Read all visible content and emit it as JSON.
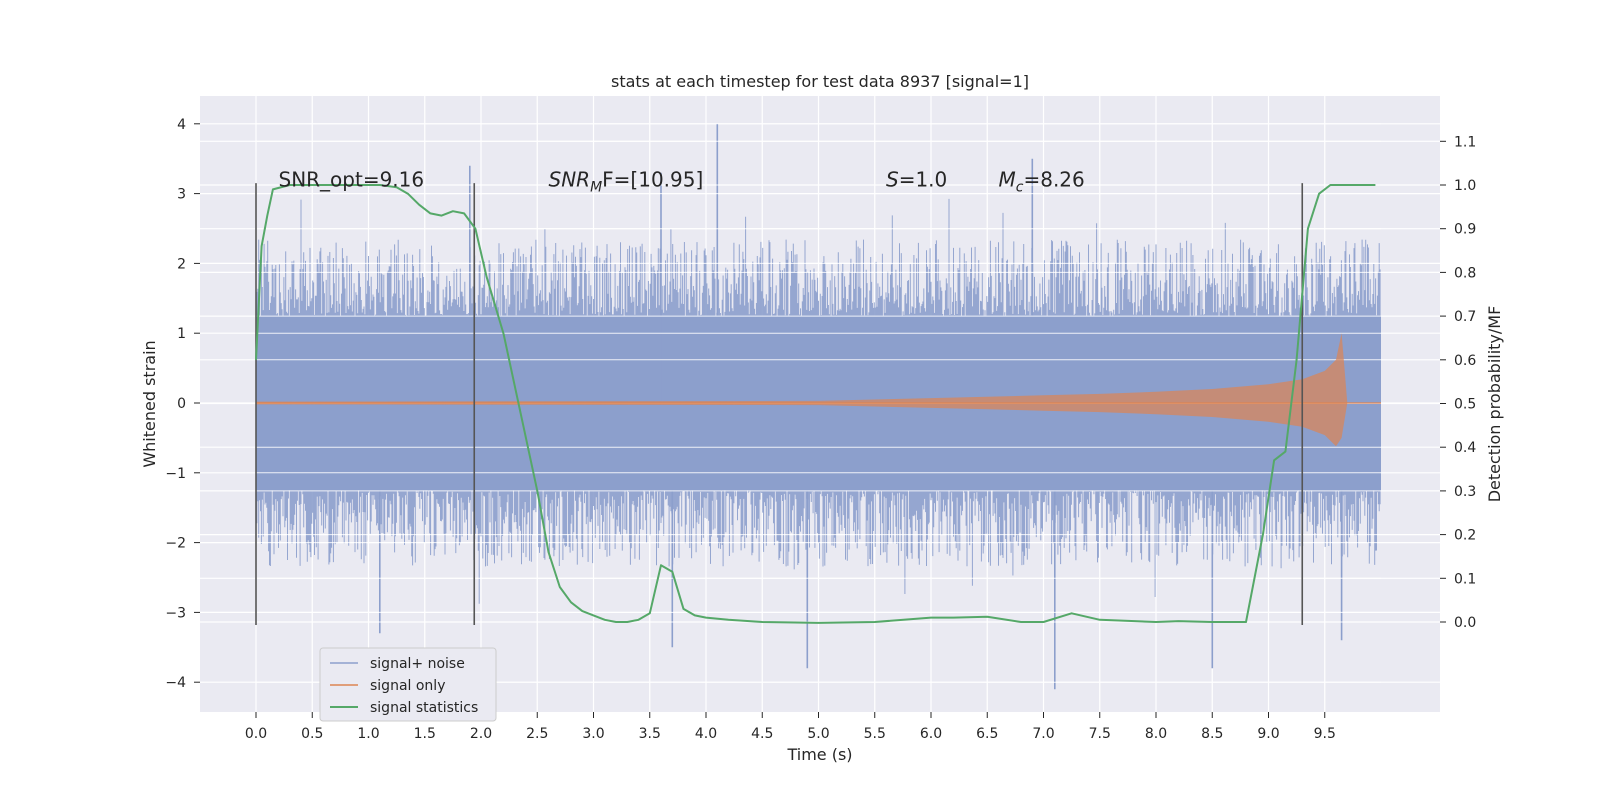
{
  "chart_data": {
    "type": "line",
    "title": "stats at each timestep for test data 8937 [signal=1]",
    "xlabel": "Time (s)",
    "ylabel": "Whitened strain",
    "y2label": "Detection probability/MF",
    "xlim": [
      -0.5,
      10.5
    ],
    "ylim": [
      -4.4,
      4.4
    ],
    "y2lim": [
      -0.2,
      1.2
    ],
    "xticks": [
      0.0,
      0.5,
      1.0,
      1.5,
      2.0,
      2.5,
      3.0,
      3.5,
      4.0,
      4.5,
      5.0,
      5.5,
      6.0,
      6.5,
      7.0,
      7.5,
      8.0,
      8.5,
      9.0,
      9.5
    ],
    "xtick_labels": [
      "0.0",
      "0.5",
      "1.0",
      "1.5",
      "2.0",
      "2.5",
      "3.0",
      "3.5",
      "4.0",
      "4.5",
      "5.0",
      "5.5",
      "6.0",
      "6.5",
      "7.0",
      "7.5",
      "8.0",
      "8.5",
      "9.0",
      "9.5"
    ],
    "yticks": [
      4,
      3,
      2,
      1,
      0,
      -1,
      -2,
      -3,
      -4
    ],
    "ytick_labels": [
      "4",
      "3",
      "2",
      "1",
      "0",
      "−1",
      "−2",
      "−3",
      "−4"
    ],
    "y2ticks": [
      1.1,
      1.0,
      0.9,
      0.8,
      0.7,
      0.6,
      0.5,
      0.4,
      0.3,
      0.2,
      0.1,
      0.0
    ],
    "y2tick_labels": [
      "1.1",
      "1.0",
      "0.9",
      "0.8",
      "0.7",
      "0.6",
      "0.5",
      "0.4",
      "0.3",
      "0.2",
      "0.1",
      "0.0"
    ],
    "grid": true,
    "legend_position": "lower-left",
    "series": [
      {
        "name": "signal+ noise",
        "color": "#8c9fcc",
        "axis": "left",
        "x_range": [
          0.0,
          10.0
        ],
        "band": {
          "inner": 1.25,
          "outer_typical": 2.2,
          "spike_max": 4.0,
          "spike_min": -4.1
        },
        "peaks": [
          {
            "x": 4.1,
            "y": 4.0
          },
          {
            "x": 1.9,
            "y": 3.4
          },
          {
            "x": 6.9,
            "y": 3.5
          },
          {
            "x": 3.6,
            "y": 3.3
          },
          {
            "x": 7.1,
            "y": -4.1
          },
          {
            "x": 4.9,
            "y": -3.8
          },
          {
            "x": 8.5,
            "y": -3.8
          },
          {
            "x": 3.7,
            "y": -3.5
          },
          {
            "x": 9.65,
            "y": -3.4
          },
          {
            "x": 1.1,
            "y": -3.3
          }
        ]
      },
      {
        "name": "signal only",
        "color": "#dd8452",
        "axis": "left",
        "x": [
          0.0,
          5.0,
          5.5,
          6.0,
          6.5,
          7.0,
          7.5,
          8.0,
          8.5,
          9.0,
          9.3,
          9.5,
          9.6,
          9.65,
          9.7
        ],
        "envelope": [
          0.02,
          0.03,
          0.05,
          0.07,
          0.09,
          0.11,
          0.13,
          0.16,
          0.2,
          0.27,
          0.34,
          0.46,
          0.62,
          1.0,
          0.0
        ]
      },
      {
        "name": "signal statistics",
        "color": "#55a868",
        "axis": "right",
        "x": [
          0.0,
          0.05,
          0.1,
          0.15,
          0.3,
          0.6,
          0.9,
          1.1,
          1.25,
          1.35,
          1.45,
          1.55,
          1.65,
          1.75,
          1.85,
          1.95,
          2.05,
          2.2,
          2.35,
          2.5,
          2.6,
          2.7,
          2.8,
          2.9,
          3.0,
          3.1,
          3.2,
          3.3,
          3.4,
          3.5,
          3.6,
          3.7,
          3.8,
          3.9,
          4.0,
          4.2,
          4.5,
          5.0,
          5.5,
          6.0,
          6.2,
          6.5,
          6.8,
          7.0,
          7.25,
          7.5,
          8.0,
          8.2,
          8.5,
          8.8,
          8.95,
          9.05,
          9.15,
          9.25,
          9.35,
          9.45,
          9.55,
          9.7,
          9.95
        ],
        "y": [
          0.6,
          0.86,
          0.93,
          0.99,
          1.0,
          1.0,
          1.0,
          1.0,
          0.995,
          0.98,
          0.955,
          0.935,
          0.93,
          0.94,
          0.935,
          0.9,
          0.79,
          0.66,
          0.48,
          0.3,
          0.16,
          0.08,
          0.045,
          0.025,
          0.015,
          0.005,
          0.0,
          0.0,
          0.005,
          0.02,
          0.13,
          0.115,
          0.03,
          0.015,
          0.01,
          0.005,
          0.0,
          -0.002,
          0.0,
          0.01,
          0.01,
          0.012,
          0.0,
          0.0,
          0.02,
          0.005,
          0.0,
          0.002,
          0.0,
          0.0,
          0.2,
          0.37,
          0.39,
          0.6,
          0.9,
          0.98,
          1.0,
          1.0,
          1.0
        ]
      }
    ],
    "vertical_lines_x": [
      0.0,
      1.94,
      9.3
    ],
    "annotations": [
      {
        "text": "SNR_opt=9.16",
        "x": 0.2,
        "y": 3.2
      },
      {
        "text_main": "SNR",
        "text_sub": "M",
        "text_rest": "F=[10.95]",
        "x": 2.6,
        "y": 3.2
      },
      {
        "text_main": "S",
        "text_rest": "=1.0",
        "x": 5.6,
        "y": 3.2
      },
      {
        "text_main": "M",
        "text_sub": "c",
        "text_rest": "=8.26",
        "x": 6.6,
        "y": 3.2
      }
    ]
  }
}
